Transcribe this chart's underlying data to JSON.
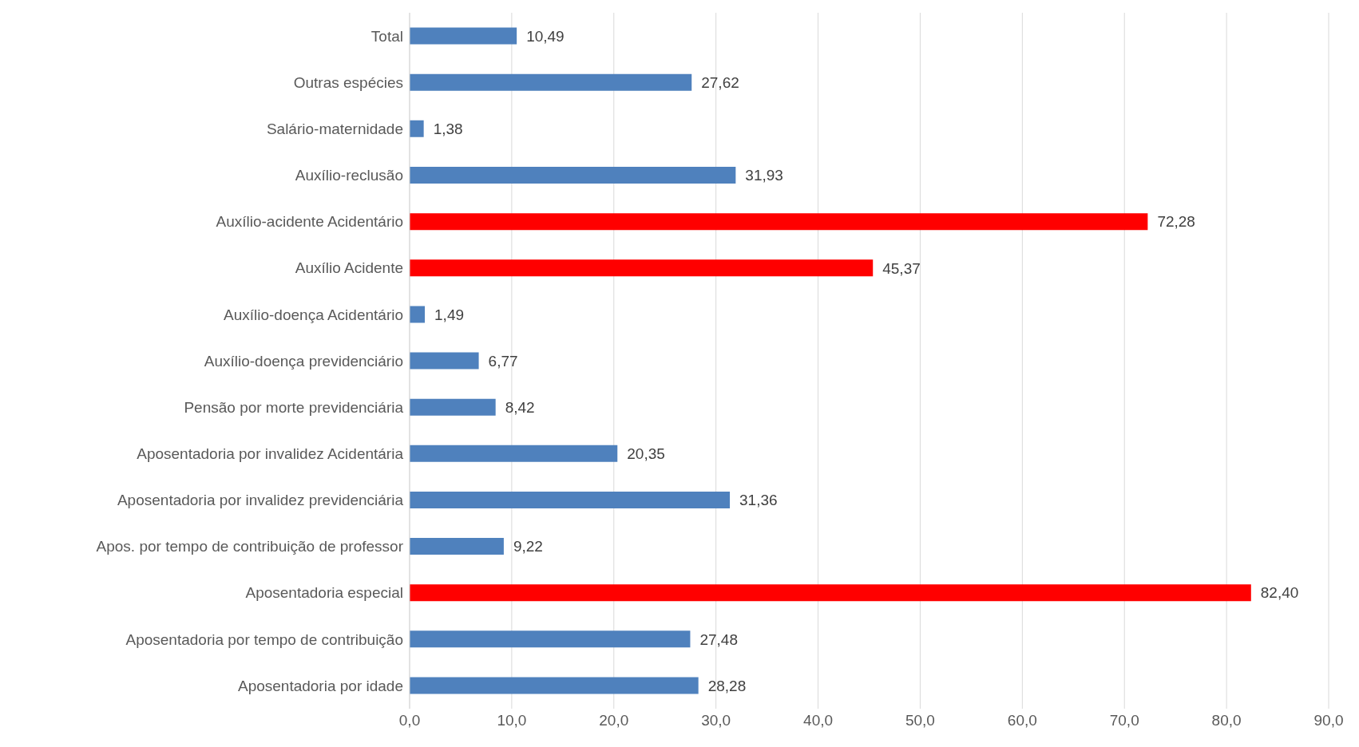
{
  "chart_data": {
    "type": "bar",
    "orientation": "horizontal",
    "categories": [
      "Total",
      "Outras espécies",
      "Salário-maternidade",
      "Auxílio-reclusão",
      "Auxílio-acidente Acidentário",
      "Auxílio Acidente",
      "Auxílio-doença Acidentário",
      "Auxílio-doença previdenciário",
      "Pensão por morte previdenciária",
      "Aposentadoria por invalidez Acidentária",
      "Aposentadoria por invalidez previdenciária",
      "Apos. por tempo de contribuição de professor",
      "Aposentadoria especial",
      "Aposentadoria por tempo de contribuição",
      "Aposentadoria por idade"
    ],
    "values": [
      10.49,
      27.62,
      1.38,
      31.93,
      72.28,
      45.37,
      1.49,
      6.77,
      8.42,
      20.35,
      31.36,
      9.22,
      82.4,
      27.48,
      28.28
    ],
    "value_labels": [
      "10,49",
      "27,62",
      "1,38",
      "31,93",
      "72,28",
      "45,37",
      "1,49",
      "6,77",
      "8,42",
      "20,35",
      "31,36",
      "9,22",
      "82,40",
      "27,48",
      "28,28"
    ],
    "colors": [
      "#4f81bd",
      "#4f81bd",
      "#4f81bd",
      "#4f81bd",
      "#ff0000",
      "#ff0000",
      "#4f81bd",
      "#4f81bd",
      "#4f81bd",
      "#4f81bd",
      "#4f81bd",
      "#4f81bd",
      "#ff0000",
      "#4f81bd",
      "#4f81bd"
    ],
    "xlim": [
      0,
      90
    ],
    "xticks": [
      {
        "value": 0,
        "label": "0,0"
      },
      {
        "value": 10,
        "label": "10,0"
      },
      {
        "value": 20,
        "label": "20,0"
      },
      {
        "value": 30,
        "label": "30,0"
      },
      {
        "value": 40,
        "label": "40,0"
      },
      {
        "value": 50,
        "label": "50,0"
      },
      {
        "value": 60,
        "label": "60,0"
      },
      {
        "value": 70,
        "label": "70,0"
      },
      {
        "value": 80,
        "label": "80,0"
      },
      {
        "value": 90,
        "label": "90,0"
      }
    ],
    "grid": "x"
  }
}
